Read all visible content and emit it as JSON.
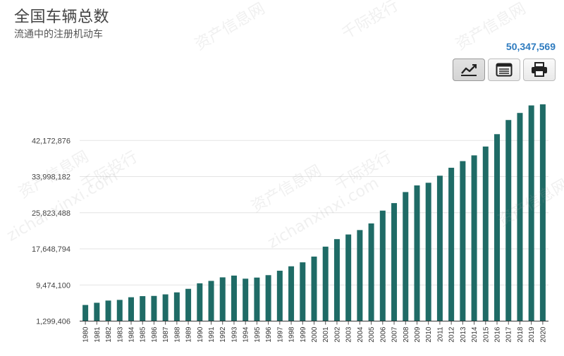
{
  "header": {
    "title": "全国车辆总数",
    "subtitle": "流通中的注册机动车",
    "latest_value": "50,347,569"
  },
  "toolbar": {
    "buttons": [
      {
        "icon": "line-chart-icon",
        "active": true
      },
      {
        "icon": "table-icon",
        "active": false
      },
      {
        "icon": "print-icon",
        "active": false
      }
    ]
  },
  "watermark": {
    "text1": "资产信息网",
    "text2": "zichanxinxi.com",
    "text3": "千际投行"
  },
  "chart_data": {
    "type": "bar",
    "bar_color": "#1f6b66",
    "ytick_labels": [
      "1,299,406",
      "9,474,100",
      "17,648,794",
      "25,823,488",
      "33,998,182",
      "42,172,876"
    ],
    "ylim": [
      1299406,
      50347569
    ],
    "grid": true,
    "categories": [
      "1980",
      "1981",
      "1982",
      "1983",
      "1984",
      "1985",
      "1986",
      "1987",
      "1988",
      "1989",
      "1990",
      "1991",
      "1992",
      "1993",
      "1994",
      "1995",
      "1996",
      "1997",
      "1998",
      "1999",
      "2000",
      "2001",
      "2002",
      "2003",
      "2004",
      "2005",
      "2006",
      "2007",
      "2008",
      "2009",
      "2010",
      "2011",
      "2012",
      "2013",
      "2014",
      "2015",
      "2016",
      "2017",
      "2018",
      "2019",
      "2020"
    ],
    "values": [
      4950000,
      5450000,
      5950000,
      6100000,
      6700000,
      6950000,
      7000000,
      7350000,
      7800000,
      8600000,
      9850000,
      10400000,
      11200000,
      11600000,
      10900000,
      11150000,
      11700000,
      12700000,
      13700000,
      14600000,
      15900000,
      18150000,
      19850000,
      20900000,
      21900000,
      23400000,
      26300000,
      28000000,
      30500000,
      32000000,
      32600000,
      34200000,
      36000000,
      37500000,
      38800000,
      40800000,
      43600000,
      46800000,
      48400000,
      50100000,
      50347569
    ]
  }
}
